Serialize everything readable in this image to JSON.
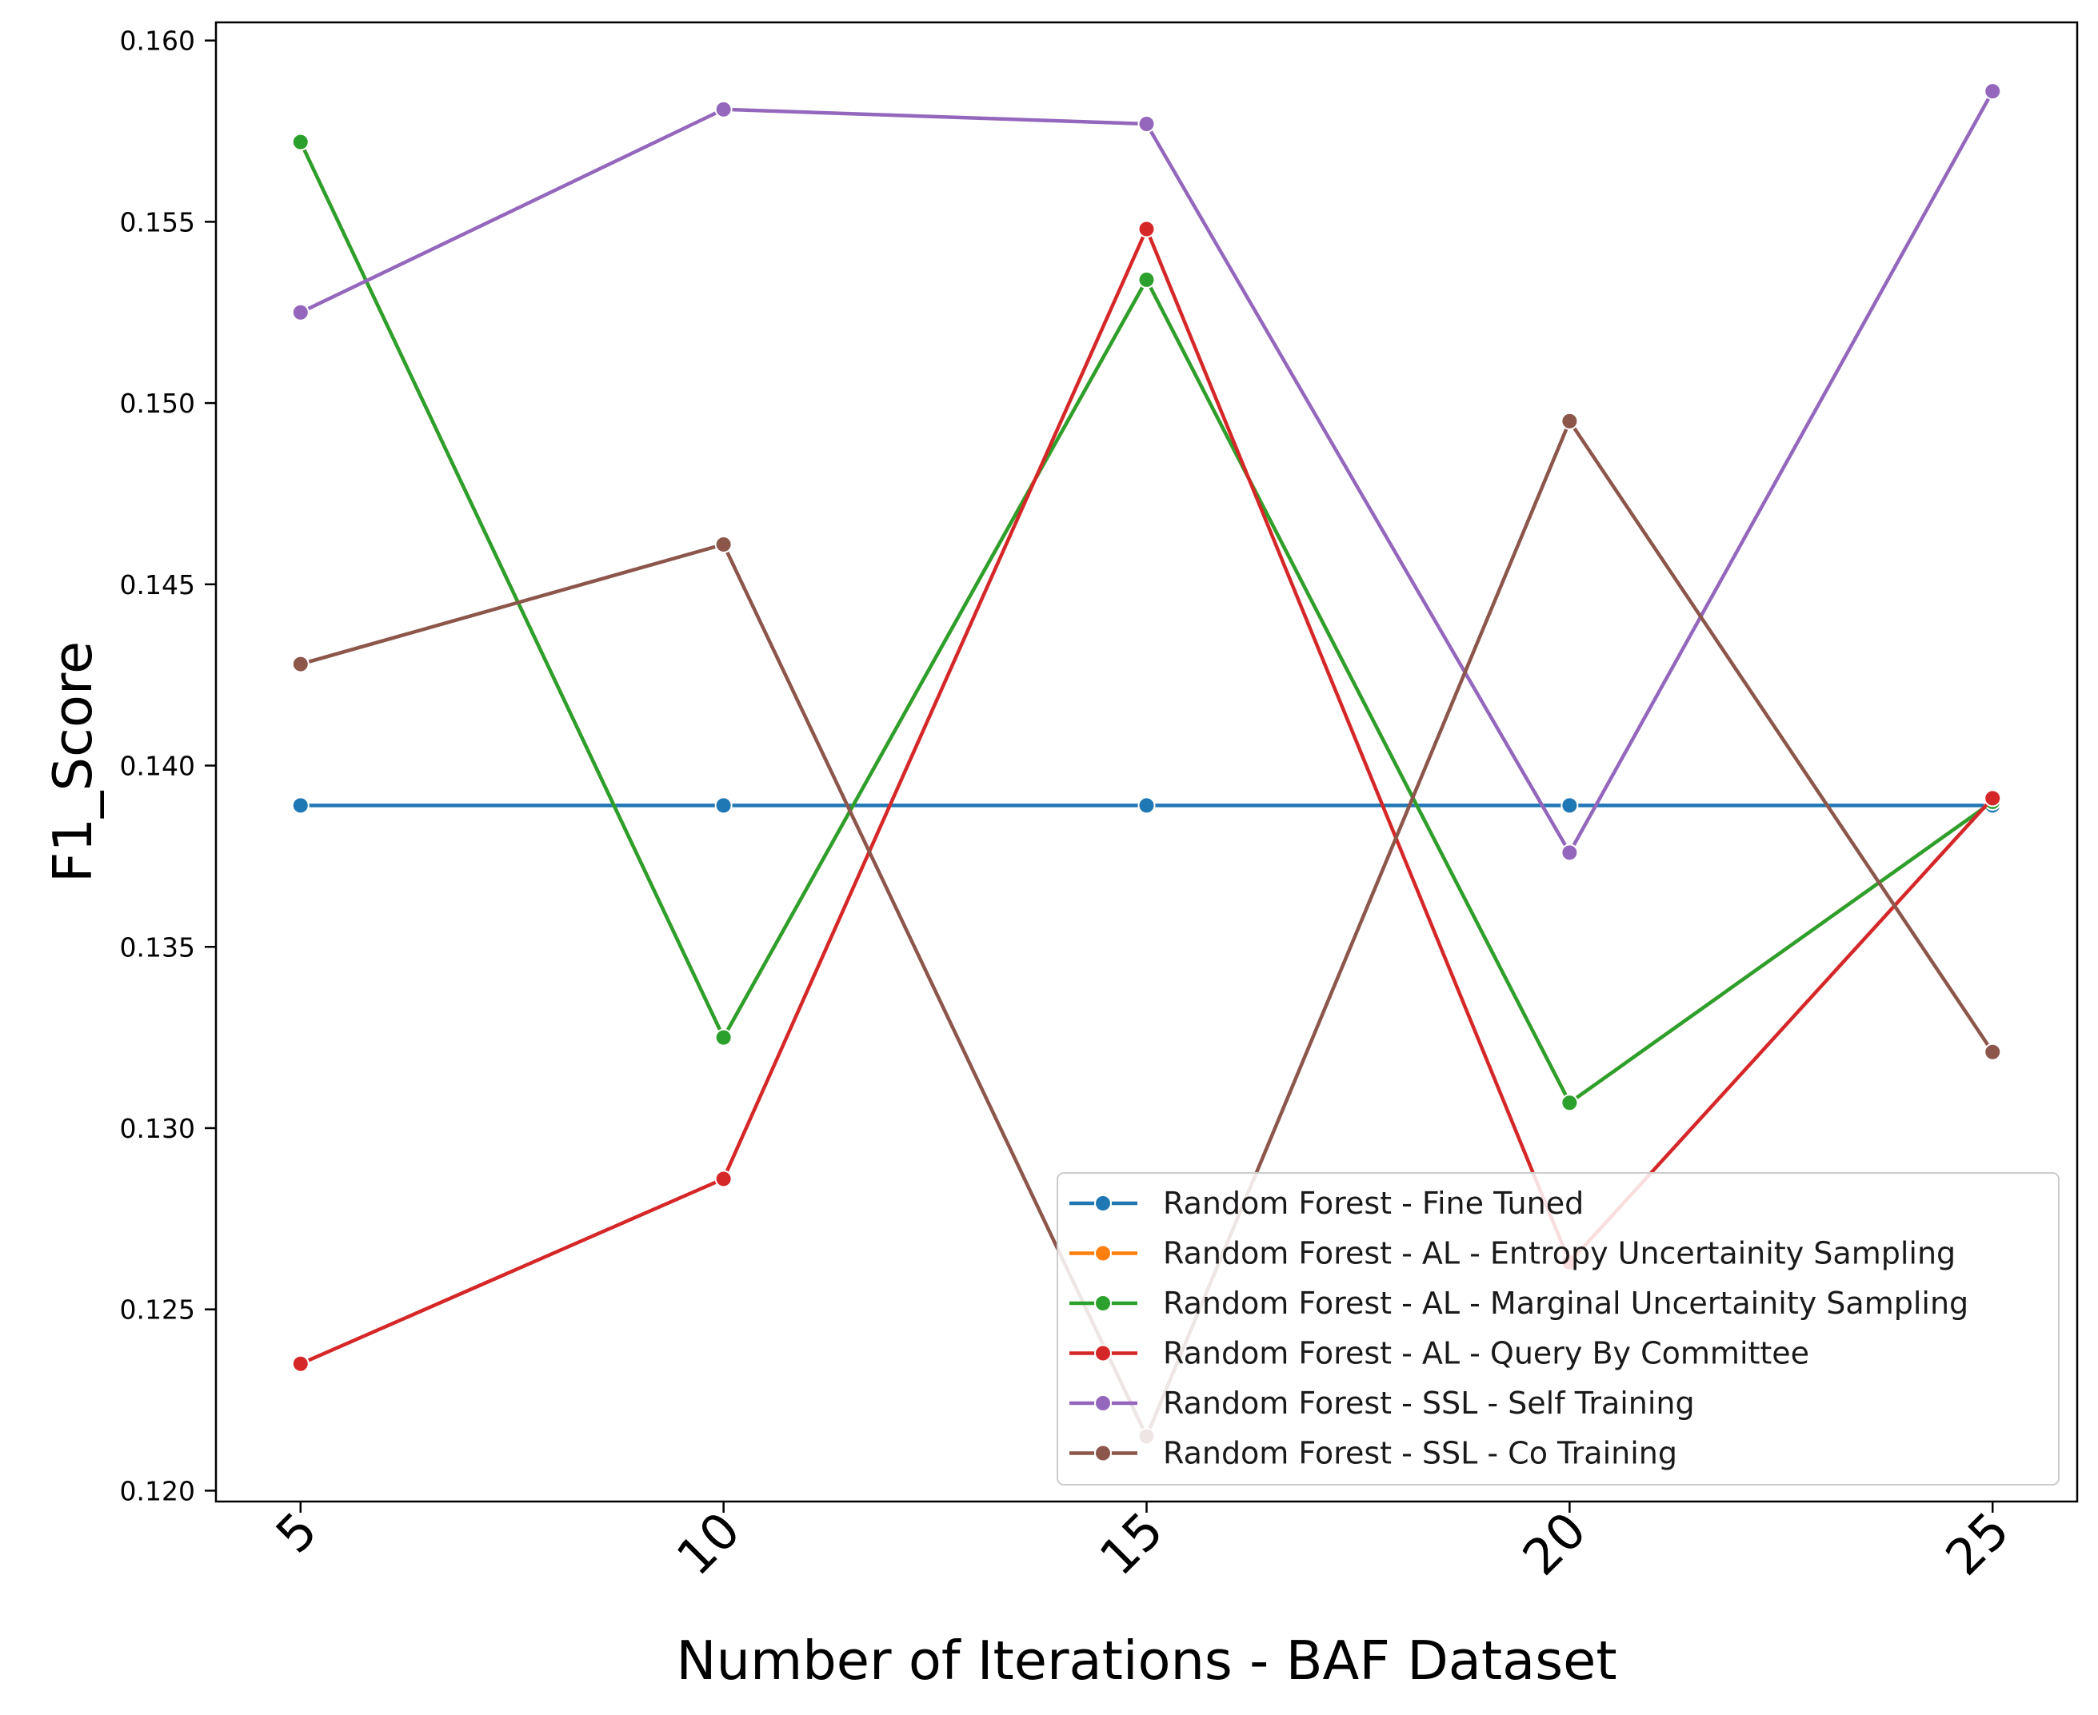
{
  "chart_data": {
    "type": "line",
    "title": "",
    "xlabel": "Number of Iterations - BAF Dataset",
    "ylabel": "F1_Score",
    "x": [
      5,
      10,
      15,
      20,
      25
    ],
    "xtick_labels": [
      "5",
      "10",
      "15",
      "20",
      "25"
    ],
    "ylim": [
      0.1197,
      0.1605
    ],
    "yticks": [
      0.12,
      0.125,
      0.13,
      0.135,
      0.14,
      0.145,
      0.15,
      0.155,
      0.16
    ],
    "ytick_labels": [
      "0.120",
      "0.125",
      "0.130",
      "0.135",
      "0.140",
      "0.145",
      "0.150",
      "0.155",
      "0.160"
    ],
    "grid": false,
    "legend_position": "bottom-right",
    "series": [
      {
        "name": "Random Forest - Fine Tuned",
        "color": "#1f77b4",
        "values": [
          0.1389,
          0.1389,
          0.1389,
          0.1389,
          0.1389
        ]
      },
      {
        "name": "Random Forest - AL - Entropy Uncertainity Sampling",
        "color": "#ff7f0e",
        "values": [
          0.1572,
          0.1325,
          0.1534,
          0.1307,
          0.139
        ]
      },
      {
        "name": "Random Forest - AL - Marginal Uncertainity Sampling",
        "color": "#2ca02c",
        "values": [
          0.1572,
          0.1325,
          0.1534,
          0.1307,
          0.139
        ]
      },
      {
        "name": "Random Forest - AL - Query By Committee",
        "color": "#d62728",
        "values": [
          0.1235,
          0.1286,
          0.1548,
          0.1263,
          0.1391
        ]
      },
      {
        "name": "Random Forest - SSL - Self Training",
        "color": "#9467bd",
        "values": [
          0.1525,
          0.1581,
          0.1577,
          0.1376,
          0.1586
        ]
      },
      {
        "name": "Random Forest - SSL - Co Training",
        "color": "#8c564b",
        "values": [
          0.1428,
          0.1461,
          0.1215,
          0.1495,
          0.1321
        ]
      }
    ]
  }
}
